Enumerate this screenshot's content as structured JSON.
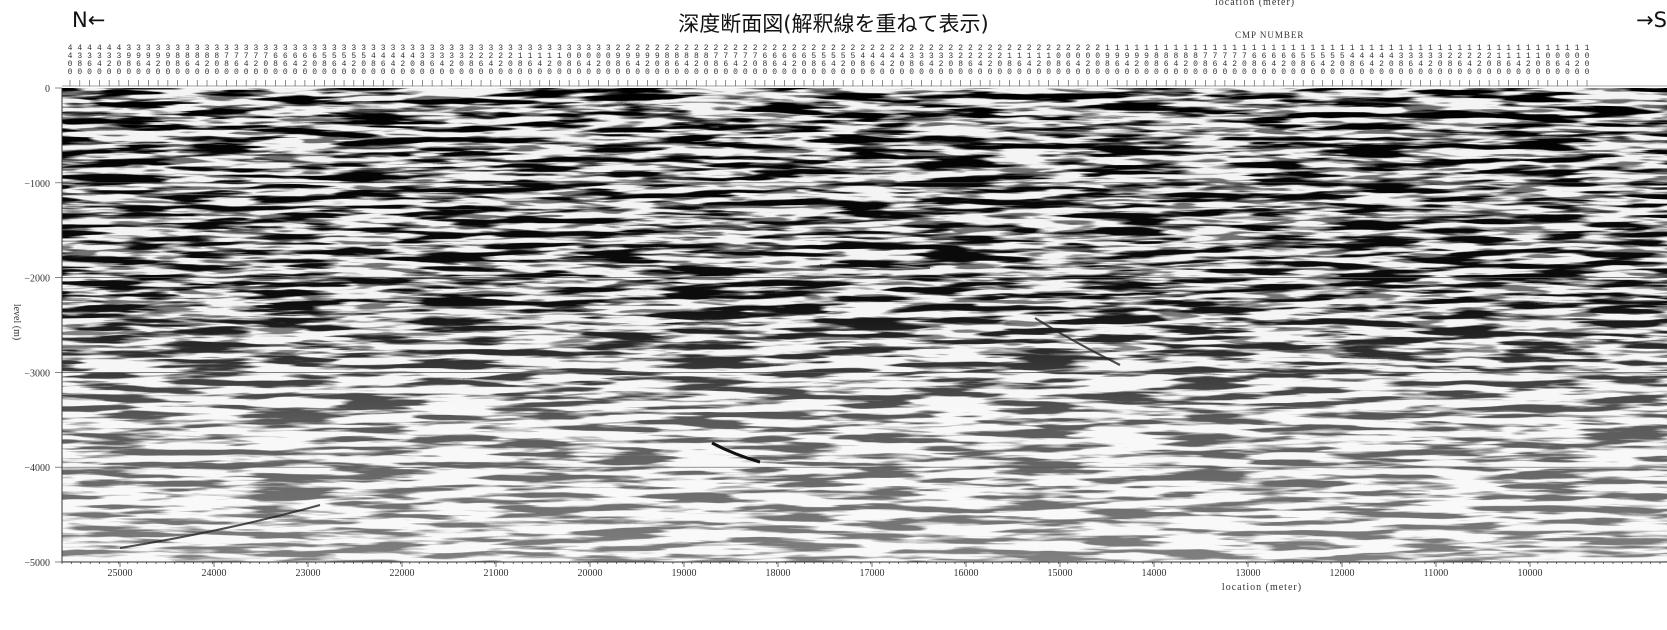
{
  "title": "深度断面図(解釈線を重ねて表示)",
  "orientation": {
    "left": "N←",
    "right": "→S"
  },
  "top_axis": {
    "label": "location (meter)",
    "sub_label": "CMP NUMBER"
  },
  "bottom_axis": {
    "label": "location (meter)",
    "ticks": [
      "25000",
      "24000",
      "23000",
      "22000",
      "21000",
      "20000",
      "19000",
      "18000",
      "17000",
      "16000",
      "15000",
      "14000",
      "13000",
      "12000",
      "11000",
      "10000"
    ]
  },
  "y_axis": {
    "label": "level (m)",
    "ticks": [
      "0",
      "−1000",
      "−2000",
      "−3000",
      "−4000",
      "−5000"
    ]
  },
  "cmp_numbers": [
    "4400",
    "4380",
    "4360",
    "4340",
    "4320",
    "4300",
    "3980",
    "3960",
    "3940",
    "3920",
    "3900",
    "3880",
    "3860",
    "3840",
    "3820",
    "3800",
    "3780",
    "3760",
    "3740",
    "3720",
    "3700",
    "3680",
    "3660",
    "3640",
    "3620",
    "3600",
    "3580",
    "3560",
    "3540",
    "3520",
    "3500",
    "3480",
    "3460",
    "3440",
    "3420",
    "3400",
    "3380",
    "3360",
    "3340",
    "3320",
    "3300",
    "3280",
    "3260",
    "3240",
    "3220",
    "3200",
    "3180",
    "3160",
    "3140",
    "3120",
    "3100",
    "3080",
    "3060",
    "3040",
    "3020",
    "3000",
    "2980",
    "2960",
    "2940",
    "2920",
    "2900",
    "2880",
    "2860",
    "2840",
    "2820",
    "2800",
    "2780",
    "2760",
    "2740",
    "2720",
    "2700",
    "2680",
    "2660",
    "2640",
    "2620",
    "2600",
    "2580",
    "2560",
    "2540",
    "2520",
    "2500",
    "2480",
    "2460",
    "2440",
    "2420",
    "2400",
    "2380",
    "2360",
    "2340",
    "2320",
    "2300",
    "2280",
    "2260",
    "2240",
    "2220",
    "2200",
    "2180",
    "2160",
    "2140",
    "2120",
    "2100",
    "2080",
    "2060",
    "2040",
    "2020",
    "2000",
    "1980",
    "1960",
    "1940",
    "1920",
    "1900",
    "1880",
    "1860",
    "1840",
    "1820",
    "1800",
    "1780",
    "1760",
    "1740",
    "1720",
    "1700",
    "1680",
    "1660",
    "1640",
    "1620",
    "1600",
    "1580",
    "1560",
    "1540",
    "1520",
    "1500",
    "1480",
    "1460",
    "1440",
    "1420",
    "1400",
    "1380",
    "1360",
    "1340",
    "1320",
    "1300",
    "1280",
    "1260",
    "1240",
    "1220",
    "1200",
    "1180",
    "1160",
    "1140",
    "1120",
    "1100",
    "1080",
    "1060",
    "1040",
    "1020",
    "1000"
  ]
}
